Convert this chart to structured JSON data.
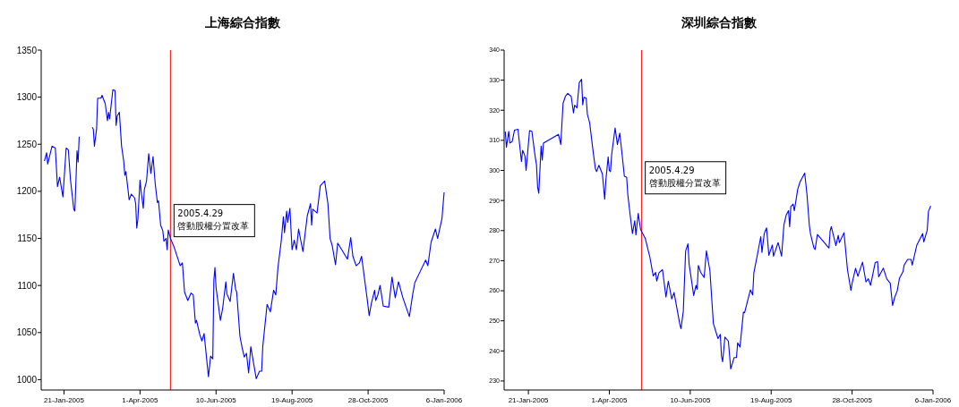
{
  "chart_data": [
    {
      "type": "line",
      "title": "上海綜合指數",
      "xlim": [
        "2004-12-31",
        "2006-01-06"
      ],
      "xticks": [
        {
          "value": "2005-01-21",
          "label": "21-Jan-2005"
        },
        {
          "value": "2005-04-01",
          "label": "1-Apr-2005"
        },
        {
          "value": "2005-06-10",
          "label": "10-Jun-2005"
        },
        {
          "value": "2005-08-19",
          "label": "19-Aug-2005"
        },
        {
          "value": "2005-10-28",
          "label": "28-Oct-2005"
        },
        {
          "value": "2006-01-06",
          "label": "6-Jan-2006"
        }
      ],
      "ylim": [
        989,
        1350
      ],
      "yticks": [
        1000,
        1050,
        1100,
        1150,
        1200,
        1250,
        1300,
        1350
      ],
      "x": [
        "2005-01-03",
        "2005-01-05",
        "2005-01-06",
        "2005-01-10",
        "2005-01-13",
        "2005-01-15",
        "2005-01-17",
        "2005-01-20",
        "2005-01-23",
        "2005-01-25",
        "2005-01-27",
        "2005-01-30",
        "2005-01-31",
        "2005-02-02",
        "2005-02-03",
        "2005-02-04",
        "2005-02-12",
        "2005-02-16",
        "2005-02-17",
        "2005-02-18",
        "2005-02-20",
        "2005-02-21",
        "2005-02-24",
        "2005-02-25",
        "2005-02-28",
        "2005-03-02",
        "2005-03-03",
        "2005-03-04",
        "2005-03-07",
        "2005-03-09",
        "2005-03-10",
        "2005-03-11",
        "2005-03-13",
        "2005-03-15",
        "2005-03-17",
        "2005-03-18",
        "2005-03-19",
        "2005-03-22",
        "2005-03-24",
        "2005-03-27",
        "2005-03-28",
        "2005-03-29",
        "2005-03-30",
        "2005-04-01",
        "2005-04-02",
        "2005-04-04",
        "2005-04-05",
        "2005-04-07",
        "2005-04-09",
        "2005-04-11",
        "2005-04-13",
        "2005-04-15",
        "2005-04-17",
        "2005-04-18",
        "2005-04-20",
        "2005-04-22",
        "2005-04-23",
        "2005-04-25",
        "2005-04-26",
        "2005-04-27",
        "2005-04-29",
        "2005-05-02",
        "2005-05-08",
        "2005-05-10",
        "2005-05-12",
        "2005-05-15",
        "2005-05-18",
        "2005-05-20",
        "2005-05-22",
        "2005-05-23",
        "2005-05-26",
        "2005-05-28",
        "2005-05-30",
        "2005-06-03",
        "2005-06-05",
        "2005-06-07",
        "2005-06-08",
        "2005-06-09",
        "2005-06-10",
        "2005-06-14",
        "2005-06-16",
        "2005-06-19",
        "2005-06-20",
        "2005-06-23",
        "2005-06-26",
        "2005-06-28",
        "2005-06-29",
        "2005-07-02",
        "2005-07-04",
        "2005-07-06",
        "2005-07-08",
        "2005-07-10",
        "2005-07-12",
        "2005-07-13",
        "2005-07-17",
        "2005-07-20",
        "2005-07-22",
        "2005-07-23",
        "2005-07-27",
        "2005-07-30",
        "2005-08-02",
        "2005-08-04",
        "2005-08-06",
        "2005-08-09",
        "2005-08-11",
        "2005-08-12",
        "2005-08-14",
        "2005-08-15",
        "2005-08-17",
        "2005-08-19",
        "2005-08-21",
        "2005-08-23",
        "2005-08-25",
        "2005-08-29",
        "2005-09-02",
        "2005-09-05",
        "2005-09-06",
        "2005-09-07",
        "2005-09-11",
        "2005-09-14",
        "2005-09-18",
        "2005-09-21",
        "2005-09-23",
        "2005-09-25",
        "2005-09-28",
        "2005-09-30",
        "2005-10-09",
        "2005-10-12",
        "2005-10-14",
        "2005-10-17",
        "2005-10-20",
        "2005-10-22",
        "2005-10-27",
        "2005-10-29",
        "2005-10-31",
        "2005-11-03",
        "2005-11-04",
        "2005-11-06",
        "2005-11-08",
        "2005-11-11",
        "2005-11-16",
        "2005-11-19",
        "2005-11-22",
        "2005-11-25",
        "2005-11-29",
        "2005-12-05",
        "2005-12-08",
        "2005-12-10",
        "2005-12-15",
        "2005-12-20",
        "2005-12-22",
        "2005-12-25",
        "2005-12-29",
        "2005-12-31",
        "2006-01-04",
        "2006-01-06"
      ],
      "series": [
        {
          "color": "#0000ff",
          "values": [
            1232,
            1241,
            1229,
            1248,
            1246,
            1205,
            1215,
            1194,
            1246,
            1244,
            1212,
            1181,
            1179,
            1243,
            1231,
            1258,
            null,
            1268,
            1266,
            1248,
            1266,
            1299,
            1299,
            1302,
            1293,
            1275,
            1284,
            1277,
            1308,
            1307,
            1270,
            1280,
            1284,
            1248,
            1232,
            1217,
            1221,
            1191,
            1197,
            1193,
            1187,
            1161,
            1170,
            1212,
            1200,
            1182,
            1202,
            1211,
            1240,
            1219,
            1237,
            1208,
            1188,
            1190,
            1164,
            1158,
            1147,
            1150,
            1138,
            1159,
            1150,
            1142,
            1121,
            1124,
            1093,
            1084,
            1092,
            1090,
            1060,
            1063,
            1048,
            1041,
            1049,
            1003,
            1025,
            1022,
            1106,
            1119,
            1098,
            1063,
            1075,
            1104,
            1091,
            1083,
            1113,
            1096,
            1093,
            1046,
            1034,
            1024,
            1028,
            1007,
            1035,
            1028,
            1001,
            1009,
            1009,
            1035,
            1080,
            1072,
            1095,
            1090,
            1119,
            1147,
            1173,
            1156,
            1179,
            1167,
            1182,
            1138,
            1148,
            1138,
            1160,
            1136,
            1174,
            1187,
            1164,
            1181,
            1177,
            1206,
            1211,
            1187,
            1150,
            1142,
            1122,
            1145,
            1128,
            1151,
            1131,
            1121,
            1124,
            1131,
            1087,
            1068,
            1081,
            1095,
            1084,
            1090,
            1100,
            1078,
            1077,
            1109,
            1087,
            1104,
            1087,
            1067,
            1090,
            1103,
            1115,
            1127,
            1121,
            1146,
            1160,
            1150,
            1171,
            1199
          ]
        }
      ],
      "ref_lines": [
        {
          "axis": "x",
          "value": "2005-04-29",
          "color": "#ff0000"
        }
      ],
      "annotations": [
        {
          "text": "2005.4.29 啓動股權分置改革",
          "x": "2005-04-29",
          "y": 1186
        }
      ]
    },
    {
      "type": "line",
      "title": "深圳綜合指數",
      "xlim": [
        "2004-12-31",
        "2006-01-06"
      ],
      "xticks": [
        {
          "value": "2005-01-21",
          "label": "21-Jan-2005"
        },
        {
          "value": "2005-04-01",
          "label": "1-Apr-2005"
        },
        {
          "value": "2005-06-10",
          "label": "10-Jun-2005"
        },
        {
          "value": "2005-08-19",
          "label": "19-Aug-2005"
        },
        {
          "value": "2005-10-28",
          "label": "28-Oct-2005"
        },
        {
          "value": "2006-01-06",
          "label": "6-Jan-2006"
        }
      ],
      "ylim": [
        227,
        340
      ],
      "yticks": [
        230,
        240,
        250,
        260,
        270,
        280,
        290,
        300,
        310,
        320,
        330,
        340
      ],
      "x": [
        "2005-01-01",
        "2005-01-02",
        "2005-01-04",
        "2005-01-05",
        "2005-01-07",
        "2005-01-09",
        "2005-01-12",
        "2005-01-13",
        "2005-01-15",
        "2005-01-16",
        "2005-01-18",
        "2005-01-19",
        "2005-01-22",
        "2005-01-24",
        "2005-01-25",
        "2005-01-27",
        "2005-01-28",
        "2005-01-29",
        "2005-01-30",
        "2005-02-01",
        "2005-02-02",
        "2005-02-03",
        "2005-02-16",
        "2005-02-18",
        "2005-02-20",
        "2005-02-22",
        "2005-02-24",
        "2005-02-27",
        "2005-03-01",
        "2005-03-02",
        "2005-03-04",
        "2005-03-06",
        "2005-03-08",
        "2005-03-09",
        "2005-03-10",
        "2005-03-12",
        "2005-03-13",
        "2005-03-15",
        "2005-03-18",
        "2005-03-20",
        "2005-03-21",
        "2005-03-23",
        "2005-03-26",
        "2005-03-28",
        "2005-03-29",
        "2005-03-31",
        "2005-04-01",
        "2005-04-02",
        "2005-04-03",
        "2005-04-06",
        "2005-04-08",
        "2005-04-10",
        "2005-04-12",
        "2005-04-14",
        "2005-04-16",
        "2005-04-17",
        "2005-04-19",
        "2005-04-21",
        "2005-04-23",
        "2005-04-24",
        "2005-04-26",
        "2005-04-28",
        "2005-05-02",
        "2005-05-06",
        "2005-05-09",
        "2005-05-11",
        "2005-05-12",
        "2005-05-14",
        "2005-05-17",
        "2005-05-20",
        "2005-05-22",
        "2005-05-25",
        "2005-05-27",
        "2005-06-01",
        "2005-06-02",
        "2005-06-04",
        "2005-06-06",
        "2005-06-08",
        "2005-06-09",
        "2005-06-13",
        "2005-06-15",
        "2005-06-16",
        "2005-06-17",
        "2005-06-19",
        "2005-06-22",
        "2005-06-24",
        "2005-06-27",
        "2005-06-30",
        "2005-07-04",
        "2005-07-06",
        "2005-07-07",
        "2005-07-08",
        "2005-07-10",
        "2005-07-13",
        "2005-07-15",
        "2005-07-18",
        "2005-07-20",
        "2005-07-21",
        "2005-07-23",
        "2005-07-26",
        "2005-07-27",
        "2005-08-01",
        "2005-08-03",
        "2005-08-04",
        "2005-08-07",
        "2005-08-10",
        "2005-08-11",
        "2005-08-13",
        "2005-08-15",
        "2005-08-17",
        "2005-08-20",
        "2005-08-21",
        "2005-08-25",
        "2005-08-28",
        "2005-08-30",
        "2005-09-01",
        "2005-09-03",
        "2005-09-04",
        "2005-09-05",
        "2005-09-07",
        "2005-09-08",
        "2005-09-11",
        "2005-09-13",
        "2005-09-17",
        "2005-09-19",
        "2005-09-21",
        "2005-09-22",
        "2005-09-25",
        "2005-09-26",
        "2005-09-28",
        "2005-10-08",
        "2005-10-09",
        "2005-10-10",
        "2005-10-14",
        "2005-10-16",
        "2005-10-17",
        "2005-10-21",
        "2005-10-24",
        "2005-10-27",
        "2005-10-28",
        "2005-10-31",
        "2005-11-02",
        "2005-11-04",
        "2005-11-06",
        "2005-11-09",
        "2005-11-11",
        "2005-11-13",
        "2005-11-17",
        "2005-11-19",
        "2005-11-20",
        "2005-11-24",
        "2005-11-27",
        "2005-11-30",
        "2005-12-02",
        "2005-12-04",
        "2005-12-06",
        "2005-12-08",
        "2005-12-11",
        "2005-12-12",
        "2005-12-15",
        "2005-12-18",
        "2005-12-19",
        "2005-12-23",
        "2005-12-28",
        "2005-12-29",
        "2006-01-01",
        "2006-01-02",
        "2006-01-04"
      ],
      "series": [
        {
          "color": "#0000ff",
          "values": [
            312.9,
            307.7,
            313,
            309.1,
            309.6,
            313.4,
            313.7,
            310,
            302.9,
            306.7,
            304.8,
            300,
            313.2,
            313,
            310,
            304.2,
            301.9,
            294.3,
            292.4,
            308.1,
            303.4,
            309.1,
            312,
            308.6,
            322.3,
            324.6,
            325.6,
            324.6,
            319.1,
            321.7,
            320.8,
            329.2,
            330.3,
            321.8,
            324.3,
            324,
            318.7,
            315.8,
            306.2,
            300.5,
            299.6,
            301.7,
            298.8,
            290.4,
            296.7,
            304.5,
            300,
            299.6,
            305.2,
            314.1,
            308.6,
            312.4,
            305.5,
            298.1,
            297.7,
            291.9,
            285.2,
            279,
            283.3,
            278.5,
            285.7,
            280.4,
            277.5,
            271.3,
            264.9,
            266.1,
            263.2,
            266,
            267,
            257.9,
            263.2,
            257.3,
            259.4,
            248.8,
            247.4,
            253.2,
            273.2,
            275.6,
            268.9,
            258.4,
            261.8,
            260.5,
            268.4,
            266.1,
            264.4,
            273.3,
            266.7,
            249.1,
            244.1,
            245.5,
            238.3,
            236.4,
            244.6,
            243.2,
            234,
            237.8,
            237.8,
            242.7,
            241.3,
            252.9,
            252.7,
            260.3,
            258.6,
            265.9,
            271.8,
            278,
            272.7,
            279,
            280.9,
            271.8,
            275.2,
            271.5,
            276,
            271.5,
            281.8,
            285.2,
            286.6,
            281.3,
            288,
            288.8,
            286.6,
            293.8,
            296.2,
            299.1,
            291.9,
            281.8,
            278.9,
            274.2,
            273.7,
            278.7,
            274.2,
            279.9,
            281.3,
            275,
            278.4,
            276,
            279.3,
            267,
            260.1,
            262.5,
            267.5,
            264.8,
            267.2,
            269.5,
            262.9,
            264,
            261.8,
            269.4,
            269.7,
            264.6,
            267.5,
            263.9,
            262.5,
            255.1,
            258,
            259.9,
            264.2,
            266.3,
            268.5,
            270.4,
            270.4,
            268.5,
            275.2,
            279,
            276.2,
            280.2,
            286.3,
            288.2
          ]
        }
      ],
      "ref_lines": [
        {
          "axis": "x",
          "value": "2005-04-29",
          "color": "#ff0000"
        }
      ],
      "annotations": [
        {
          "text": "2005.4.29 啓動股權分置改革",
          "x": "2005-04-29",
          "y": 302.9
        }
      ]
    }
  ]
}
